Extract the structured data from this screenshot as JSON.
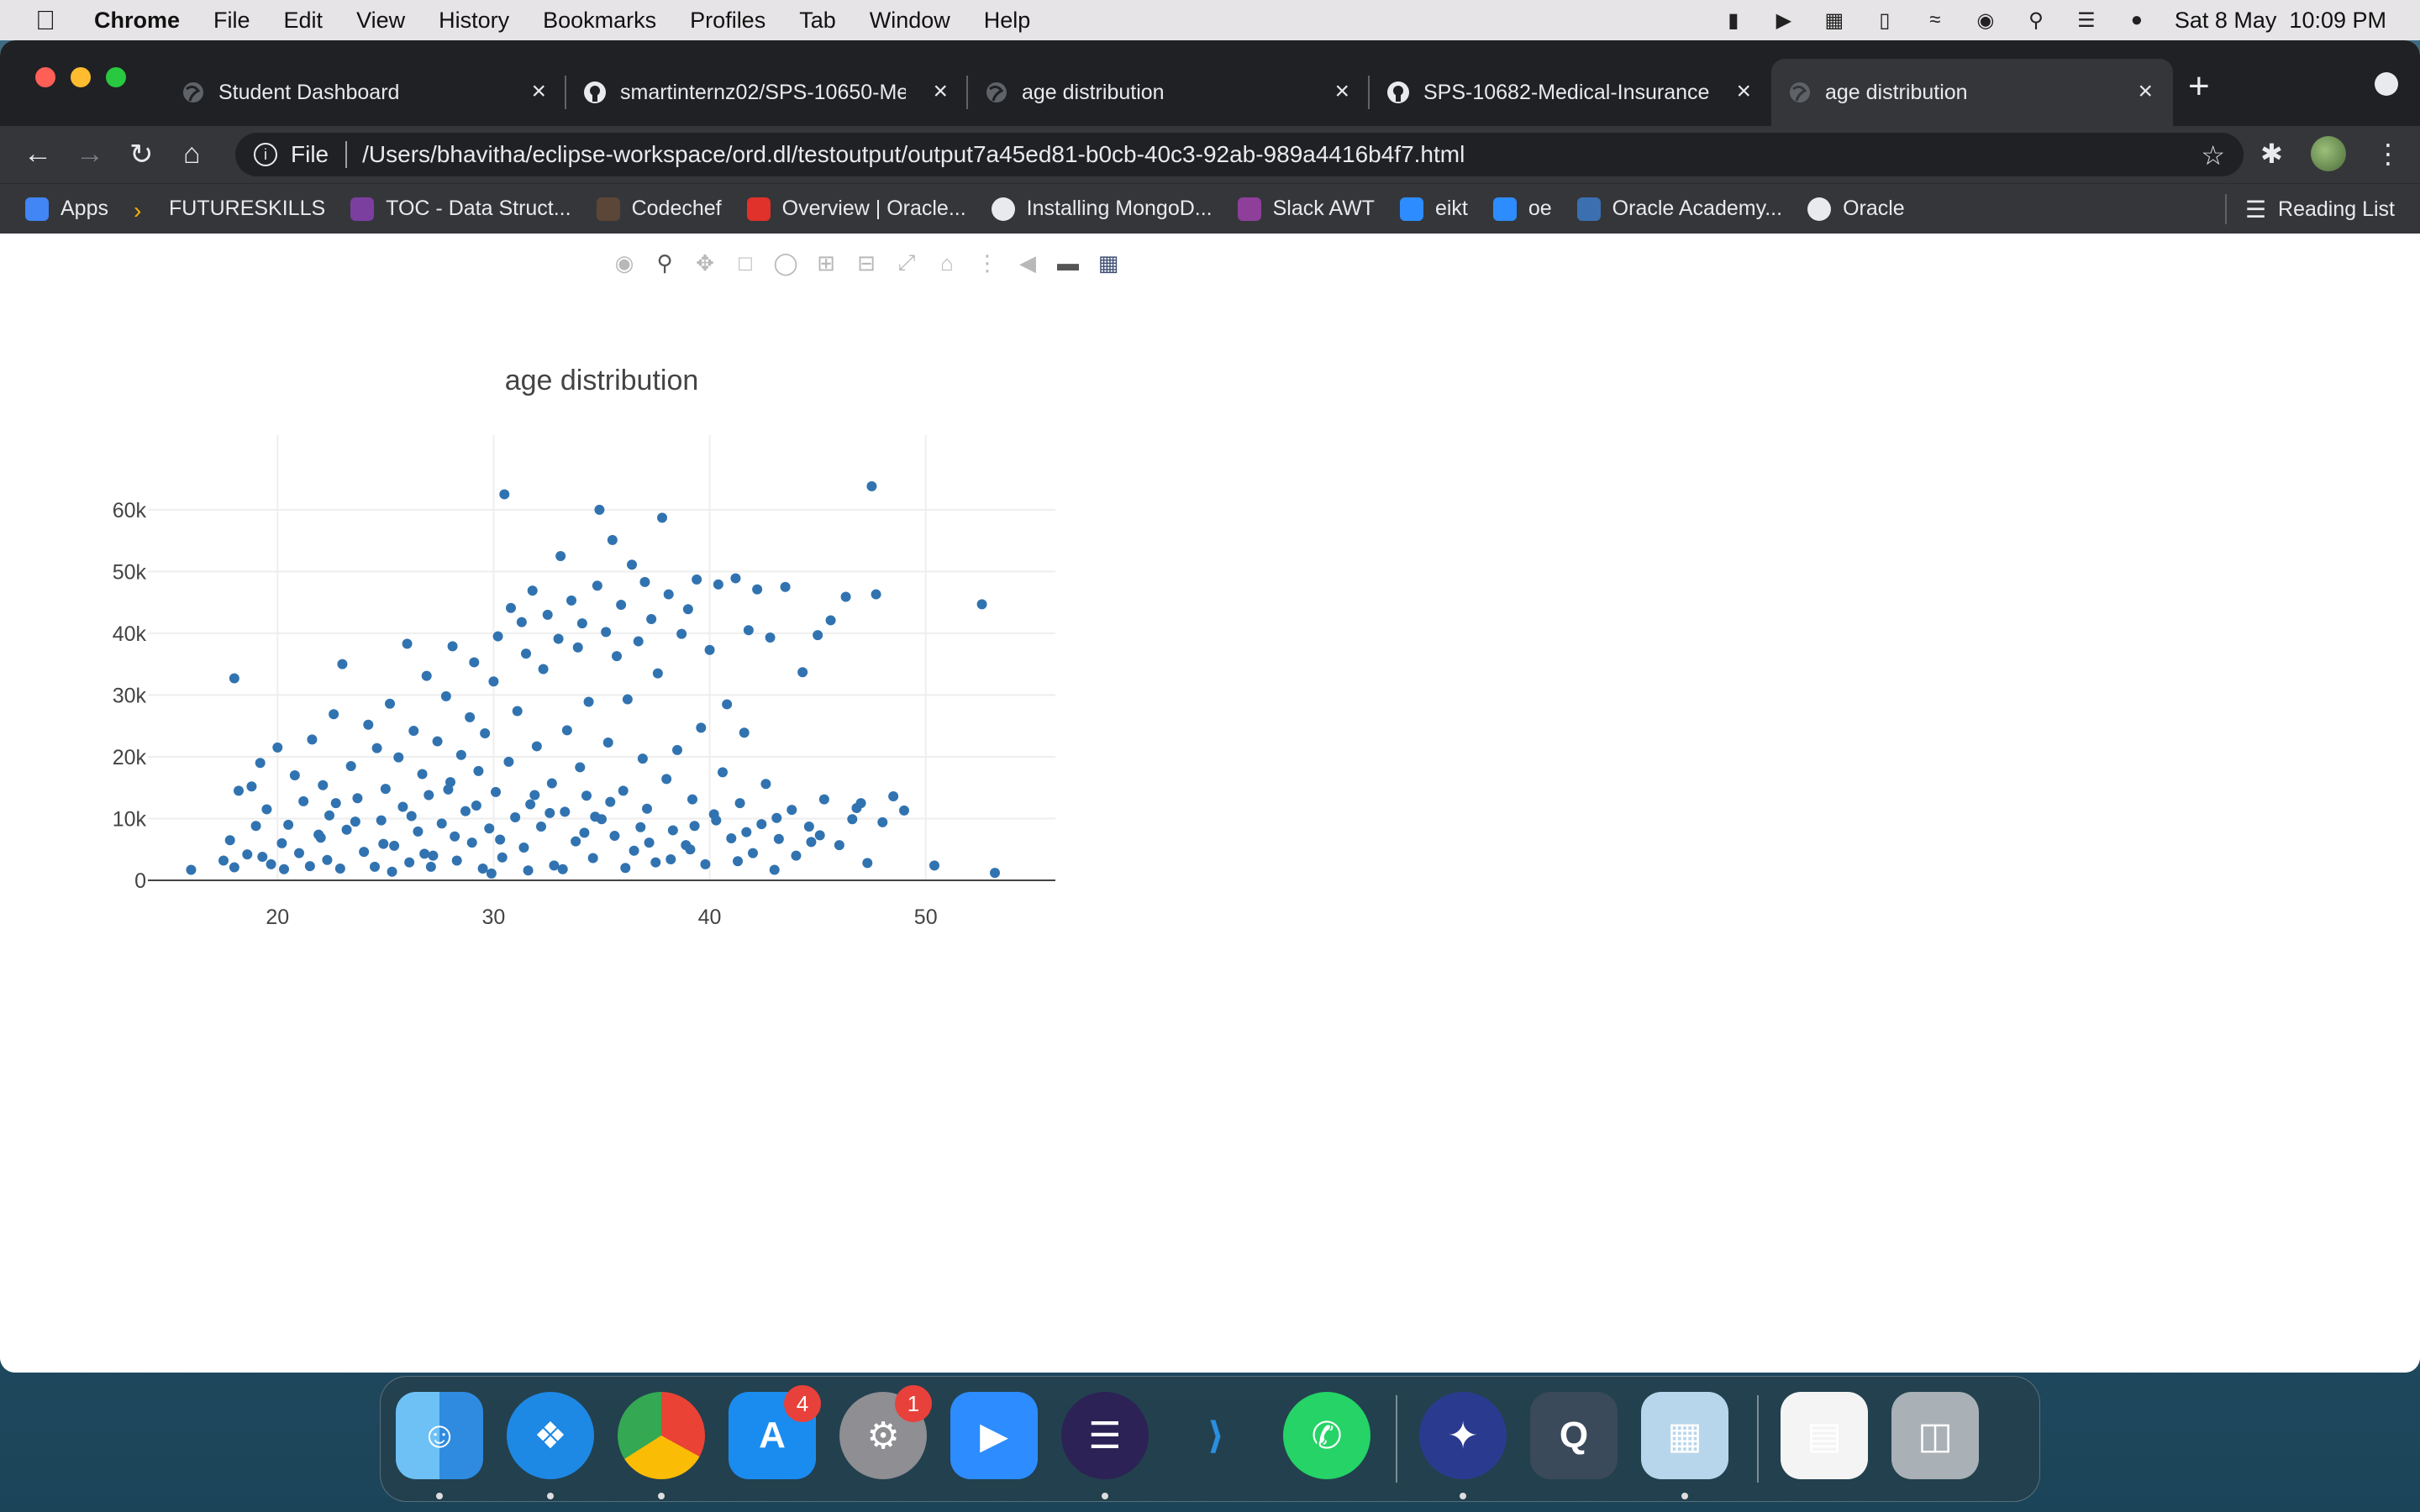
{
  "menubar": {
    "app_name": "Chrome",
    "items": [
      "File",
      "Edit",
      "View",
      "History",
      "Bookmarks",
      "Profiles",
      "Tab",
      "Window",
      "Help"
    ],
    "datetime": "Sat 8 May  10:09 PM"
  },
  "tabs": [
    {
      "title": "Student Dashboard",
      "icon": "globe-icon",
      "active": false
    },
    {
      "title": "smartinternz02/SPS-10650-Me",
      "icon": "github-icon",
      "active": false
    },
    {
      "title": "age distribution",
      "icon": "globe-icon",
      "active": false
    },
    {
      "title": "SPS-10682-Medical-Insurance",
      "icon": "github-icon",
      "active": false
    },
    {
      "title": "age distribution",
      "icon": "globe-icon",
      "active": true
    }
  ],
  "address_bar": {
    "scheme": "File",
    "url": "/Users/bhavitha/eclipse-workspace/ord.dl/testoutput/output7a45ed81-b0cb-40c3-92ab-989a4416b4f7.html"
  },
  "bookmarks": {
    "items": [
      {
        "label": "Apps",
        "icon": "apps-grid-icon",
        "color": "#4285f4"
      },
      {
        "label": "FUTURESKILLS",
        "icon": "chevron-icon",
        "color": "#f4b400"
      },
      {
        "label": "TOC - Data Struct...",
        "icon": "toc-icon",
        "color": "#7b3fa0"
      },
      {
        "label": "Codechef",
        "icon": "codechef-icon",
        "color": "#5b4638"
      },
      {
        "label": "Overview | Oracle...",
        "icon": "oracle-icon",
        "color": "#e0312a"
      },
      {
        "label": "Installing MongoD...",
        "icon": "globe-icon",
        "color": "#e8eaed"
      },
      {
        "label": "Slack AWT",
        "icon": "slack-icon",
        "color": "#8e3f9a"
      },
      {
        "label": "eikt",
        "icon": "zoom-icon",
        "color": "#2d8cff"
      },
      {
        "label": "oe",
        "icon": "zoom-icon",
        "color": "#2d8cff"
      },
      {
        "label": "Oracle Academy...",
        "icon": "oracle-academy-icon",
        "color": "#3c6fb0"
      },
      {
        "label": "Oracle",
        "icon": "globe-icon",
        "color": "#e8eaed"
      }
    ],
    "reading_list": "Reading List"
  },
  "chart_data": {
    "type": "scatter",
    "title": "age distribution",
    "xlabel": "",
    "ylabel": "",
    "xlim": [
      14,
      56
    ],
    "ylim": [
      0,
      68000
    ],
    "x_ticks": [
      20,
      30,
      40,
      50
    ],
    "y_ticks": [
      0,
      10000,
      20000,
      30000,
      40000,
      50000,
      60000
    ],
    "y_tick_labels": [
      "0",
      "10k",
      "20k",
      "30k",
      "40k",
      "50k",
      "60k"
    ],
    "grid": true,
    "marker_color": "#3173b0",
    "points": [
      [
        16,
        1700
      ],
      [
        17.5,
        3200
      ],
      [
        17.8,
        6500
      ],
      [
        18,
        2100
      ],
      [
        18.2,
        14500
      ],
      [
        18,
        32700
      ],
      [
        18.6,
        4200
      ],
      [
        18.8,
        15200
      ],
      [
        19,
        8800
      ],
      [
        19.2,
        19000
      ],
      [
        19.5,
        11500
      ],
      [
        19.7,
        2600
      ],
      [
        20,
        21500
      ],
      [
        20.3,
        1800
      ],
      [
        20.5,
        9000
      ],
      [
        20.8,
        17000
      ],
      [
        21,
        4400
      ],
      [
        21.2,
        12800
      ],
      [
        21.5,
        2300
      ],
      [
        21.6,
        22800
      ],
      [
        22,
        6900
      ],
      [
        22.1,
        15400
      ],
      [
        22.4,
        10500
      ],
      [
        22.6,
        26900
      ],
      [
        22.9,
        1900
      ],
      [
        23,
        35000
      ],
      [
        23.2,
        8200
      ],
      [
        23.4,
        18500
      ],
      [
        23.7,
        13300
      ],
      [
        24,
        4600
      ],
      [
        24.2,
        25200
      ],
      [
        24.5,
        2200
      ],
      [
        24.6,
        21400
      ],
      [
        24.8,
        9700
      ],
      [
        25,
        14800
      ],
      [
        25.2,
        28600
      ],
      [
        25.4,
        5600
      ],
      [
        25.6,
        19900
      ],
      [
        25.8,
        11900
      ],
      [
        26,
        38300
      ],
      [
        26.1,
        2900
      ],
      [
        26.3,
        24200
      ],
      [
        26.5,
        7900
      ],
      [
        26.7,
        17200
      ],
      [
        26.9,
        33100
      ],
      [
        27,
        13800
      ],
      [
        27.2,
        4000
      ],
      [
        27.4,
        22500
      ],
      [
        27.6,
        9200
      ],
      [
        27.8,
        29800
      ],
      [
        28,
        15900
      ],
      [
        28.1,
        37900
      ],
      [
        28.3,
        3200
      ],
      [
        28.5,
        20300
      ],
      [
        28.7,
        11200
      ],
      [
        28.9,
        26400
      ],
      [
        29,
        6100
      ],
      [
        29.1,
        35300
      ],
      [
        29.3,
        17700
      ],
      [
        29.5,
        1900
      ],
      [
        29.6,
        23800
      ],
      [
        29.8,
        8400
      ],
      [
        30,
        32200
      ],
      [
        30.1,
        14300
      ],
      [
        30.2,
        39500
      ],
      [
        30.4,
        3700
      ],
      [
        30.5,
        62500
      ],
      [
        30.7,
        19200
      ],
      [
        30.8,
        44100
      ],
      [
        31,
        10200
      ],
      [
        31.1,
        27400
      ],
      [
        31.3,
        41800
      ],
      [
        31.4,
        5300
      ],
      [
        31.5,
        36700
      ],
      [
        31.7,
        12300
      ],
      [
        31.8,
        46900
      ],
      [
        32,
        21700
      ],
      [
        32.2,
        8700
      ],
      [
        32.3,
        34200
      ],
      [
        32.5,
        43000
      ],
      [
        32.7,
        15700
      ],
      [
        32.8,
        2400
      ],
      [
        33,
        39100
      ],
      [
        33.1,
        52500
      ],
      [
        33.3,
        11100
      ],
      [
        33.4,
        24300
      ],
      [
        33.6,
        45300
      ],
      [
        33.8,
        6300
      ],
      [
        33.9,
        37700
      ],
      [
        34,
        18300
      ],
      [
        34.1,
        41600
      ],
      [
        34.3,
        13700
      ],
      [
        34.4,
        28900
      ],
      [
        34.6,
        3600
      ],
      [
        34.8,
        47700
      ],
      [
        34.9,
        60000
      ],
      [
        35,
        9900
      ],
      [
        35.2,
        40200
      ],
      [
        35.3,
        22300
      ],
      [
        35.5,
        55100
      ],
      [
        35.6,
        7200
      ],
      [
        35.7,
        36300
      ],
      [
        35.9,
        44600
      ],
      [
        36,
        14500
      ],
      [
        36.2,
        29300
      ],
      [
        36.4,
        51100
      ],
      [
        36.5,
        4800
      ],
      [
        36.7,
        38700
      ],
      [
        36.9,
        19700
      ],
      [
        37,
        48300
      ],
      [
        37.1,
        11600
      ],
      [
        37.3,
        42300
      ],
      [
        37.5,
        2900
      ],
      [
        37.6,
        33500
      ],
      [
        37.8,
        58700
      ],
      [
        38,
        16400
      ],
      [
        38.1,
        46300
      ],
      [
        38.3,
        8100
      ],
      [
        38.5,
        21100
      ],
      [
        38.7,
        39900
      ],
      [
        38.9,
        5700
      ],
      [
        39,
        43900
      ],
      [
        39.2,
        13100
      ],
      [
        39.4,
        48700
      ],
      [
        39.6,
        24700
      ],
      [
        39.8,
        2600
      ],
      [
        40,
        37300
      ],
      [
        40.2,
        10700
      ],
      [
        40.4,
        47900
      ],
      [
        40.6,
        17500
      ],
      [
        40.8,
        28500
      ],
      [
        41,
        6800
      ],
      [
        41.2,
        48900
      ],
      [
        41.4,
        12500
      ],
      [
        41.6,
        23900
      ],
      [
        41.8,
        40500
      ],
      [
        42,
        4400
      ],
      [
        42.2,
        47100
      ],
      [
        42.4,
        9100
      ],
      [
        42.6,
        15600
      ],
      [
        42.8,
        39300
      ],
      [
        43,
        1700
      ],
      [
        43.2,
        6700
      ],
      [
        43.5,
        47500
      ],
      [
        43.8,
        11400
      ],
      [
        44,
        4000
      ],
      [
        44.3,
        33700
      ],
      [
        44.6,
        8700
      ],
      [
        45,
        39700
      ],
      [
        45.3,
        13100
      ],
      [
        45.6,
        42100
      ],
      [
        46,
        5700
      ],
      [
        46.3,
        45900
      ],
      [
        46.6,
        9900
      ],
      [
        47,
        12500
      ],
      [
        47.3,
        2800
      ],
      [
        47.5,
        63800
      ],
      [
        47.7,
        46300
      ],
      [
        48,
        9400
      ],
      [
        48.5,
        13600
      ],
      [
        49,
        11300
      ],
      [
        50.4,
        2400
      ],
      [
        52.6,
        44700
      ],
      [
        53.2,
        1200
      ],
      [
        22.3,
        3300
      ],
      [
        25.3,
        1400
      ],
      [
        27.1,
        2200
      ],
      [
        29.9,
        1100
      ],
      [
        33.2,
        1800
      ],
      [
        36.1,
        2000
      ],
      [
        21.9,
        7400
      ],
      [
        24.9,
        5900
      ],
      [
        26.2,
        10400
      ],
      [
        28.2,
        7100
      ],
      [
        30.3,
        6600
      ],
      [
        31.6,
        1600
      ],
      [
        34.2,
        7700
      ],
      [
        37.2,
        6100
      ],
      [
        39.3,
        8800
      ],
      [
        41.3,
        3100
      ],
      [
        20.2,
        6000
      ],
      [
        23.6,
        9500
      ],
      [
        26.8,
        4300
      ],
      [
        29.2,
        12100
      ],
      [
        32.6,
        10900
      ],
      [
        35.4,
        12700
      ],
      [
        38.2,
        3400
      ],
      [
        40.3,
        9700
      ],
      [
        43.1,
        10100
      ],
      [
        45.1,
        7300
      ],
      [
        19.3,
        3800
      ],
      [
        22.7,
        12500
      ],
      [
        27.9,
        14700
      ],
      [
        31.9,
        13800
      ],
      [
        34.7,
        10300
      ],
      [
        36.8,
        8600
      ],
      [
        39.1,
        5000
      ],
      [
        41.7,
        7800
      ],
      [
        44.7,
        6200
      ],
      [
        46.8,
        11700
      ]
    ]
  },
  "dock": {
    "apps": [
      {
        "name": "Finder",
        "icon": "finder-icon",
        "badge": ""
      },
      {
        "name": "Safari",
        "icon": "safari-icon",
        "badge": ""
      },
      {
        "name": "Chrome",
        "icon": "chrome-icon",
        "badge": ""
      },
      {
        "name": "App Store",
        "icon": "app-store-icon",
        "badge": "4"
      },
      {
        "name": "System Preferences",
        "icon": "gear-icon",
        "badge": "1"
      },
      {
        "name": "Zoom",
        "icon": "zoom-icon",
        "badge": ""
      },
      {
        "name": "Eclipse",
        "icon": "eclipse-icon",
        "badge": ""
      },
      {
        "name": "VS Code",
        "icon": "vscode-icon",
        "badge": ""
      },
      {
        "name": "WhatsApp",
        "icon": "whatsapp-icon",
        "badge": ""
      },
      {
        "name": "Squirrel",
        "icon": "bird-icon",
        "badge": ""
      },
      {
        "name": "QuickTime",
        "icon": "quicktime-icon",
        "badge": ""
      },
      {
        "name": "Preview",
        "icon": "preview-icon",
        "badge": ""
      },
      {
        "name": "Document",
        "icon": "document-icon",
        "badge": ""
      },
      {
        "name": "Trash",
        "icon": "trash-icon",
        "badge": ""
      }
    ]
  }
}
